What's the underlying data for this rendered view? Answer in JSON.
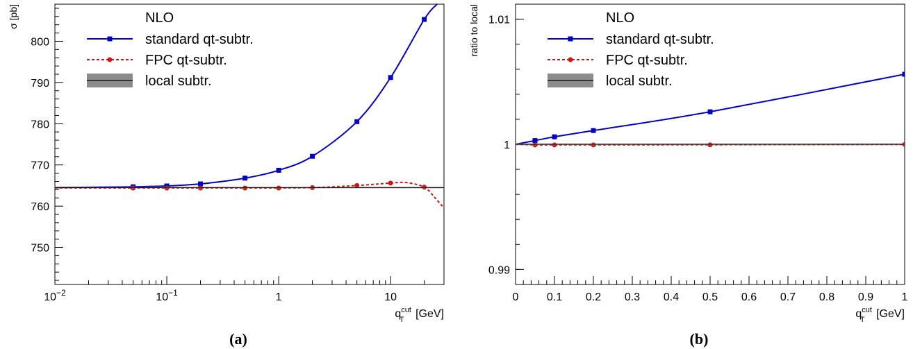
{
  "colors": {
    "standard": "#0000c8",
    "fpc": "#d21414",
    "local_line": "#000000",
    "local_band": "#8c8c8c"
  },
  "chart_data": [
    {
      "type": "line",
      "panel_label": "(a)",
      "xscale": "log",
      "xlabel_main": "q",
      "xlabel_sup": "cut",
      "xlabel_sub": "T",
      "xlabel_unit": "[GeV]",
      "ylabel": "σ [pb]",
      "xlim": [
        0.01,
        30
      ],
      "ylim": [
        741,
        809
      ],
      "x_ticks": [
        {
          "value": 0.01,
          "base": "10",
          "exp": "−2"
        },
        {
          "value": 0.1,
          "base": "10",
          "exp": "−1"
        },
        {
          "value": 1,
          "base": "1",
          "exp": ""
        },
        {
          "value": 10,
          "base": "10",
          "exp": ""
        }
      ],
      "y_ticks": [
        750,
        760,
        770,
        780,
        790,
        800
      ],
      "legend": {
        "title": "NLO",
        "entries": [
          "standard qt-subtr.",
          "FPC qt-subtr.",
          "local subtr."
        ],
        "position": "top-left"
      },
      "series": [
        {
          "name": "standard qt-subtr.",
          "marker": "square",
          "style": "solid",
          "x": [
            0.05,
            0.1,
            0.2,
            0.5,
            1,
            2,
            5,
            10,
            20
          ],
          "y": [
            764.7,
            764.9,
            765.4,
            766.8,
            768.7,
            772.1,
            780.5,
            791.2,
            805.3
          ],
          "curve_x": [
            0.01,
            0.05,
            0.1,
            0.2,
            0.5,
            1,
            2,
            5,
            10,
            20,
            26
          ],
          "curve_y": [
            764.5,
            764.7,
            764.9,
            765.4,
            766.8,
            768.7,
            772.1,
            780.5,
            791.2,
            805.3,
            809
          ]
        },
        {
          "name": "FPC qt-subtr.",
          "marker": "circle",
          "style": "dashed",
          "x": [
            0.05,
            0.1,
            0.2,
            0.5,
            1,
            2,
            5,
            10,
            20
          ],
          "y": [
            764.4,
            764.4,
            764.4,
            764.4,
            764.4,
            764.5,
            765.0,
            765.6,
            764.6
          ],
          "curve_x": [
            0.01,
            0.05,
            0.1,
            0.2,
            0.5,
            1,
            2,
            5,
            10,
            14,
            20,
            25,
            30
          ],
          "curve_y": [
            764.4,
            764.4,
            764.4,
            764.4,
            764.4,
            764.4,
            764.5,
            765.0,
            765.6,
            765.7,
            764.6,
            762.0,
            759.5
          ]
        },
        {
          "name": "local subtr.",
          "style": "band",
          "y": 764.5,
          "band": [
            764.3,
            764.7
          ]
        }
      ]
    },
    {
      "type": "line",
      "panel_label": "(b)",
      "xscale": "linear",
      "xlabel_main": "q",
      "xlabel_sup": "cut",
      "xlabel_sub": "T",
      "xlabel_unit": "[GeV]",
      "ylabel": "ratio to local",
      "xlim": [
        0,
        1
      ],
      "ylim": [
        0.9888,
        1.0112
      ],
      "x_ticks": [
        "0",
        "0.1",
        "0.2",
        "0.3",
        "0.4",
        "0.5",
        "0.6",
        "0.7",
        "0.8",
        "0.9",
        "1"
      ],
      "y_ticks": [
        {
          "value": 0.99,
          "label": "0.99"
        },
        {
          "value": 1.0,
          "label": "1"
        },
        {
          "value": 1.01,
          "label": "1.01"
        }
      ],
      "legend": {
        "title": "NLO",
        "entries": [
          "standard qt-subtr.",
          "FPC qt-subtr.",
          "local subtr."
        ],
        "position": "top-left"
      },
      "series": [
        {
          "name": "standard qt-subtr.",
          "marker": "square",
          "style": "solid",
          "x": [
            0.05,
            0.1,
            0.2,
            0.5,
            1
          ],
          "y": [
            1.0003,
            1.0006,
            1.0011,
            1.0026,
            1.0056
          ],
          "curve_x": [
            0,
            0.05,
            0.1,
            0.2,
            0.5,
            1
          ],
          "curve_y": [
            1.0,
            1.0003,
            1.0006,
            1.0011,
            1.0026,
            1.0056
          ]
        },
        {
          "name": "FPC qt-subtr.",
          "marker": "circle",
          "style": "dashed",
          "x": [
            0.05,
            0.1,
            0.2,
            0.5,
            1
          ],
          "y": [
            0.99995,
            0.99995,
            0.99995,
            0.99996,
            0.99999
          ],
          "curve_x": [
            0,
            0.05,
            0.1,
            0.2,
            0.5,
            1
          ],
          "curve_y": [
            1.0,
            0.99995,
            0.99995,
            0.99995,
            0.99996,
            0.99999
          ]
        },
        {
          "name": "local subtr.",
          "style": "band",
          "y": 1.0,
          "band": [
            0.99992,
            1.00008
          ]
        }
      ]
    }
  ]
}
